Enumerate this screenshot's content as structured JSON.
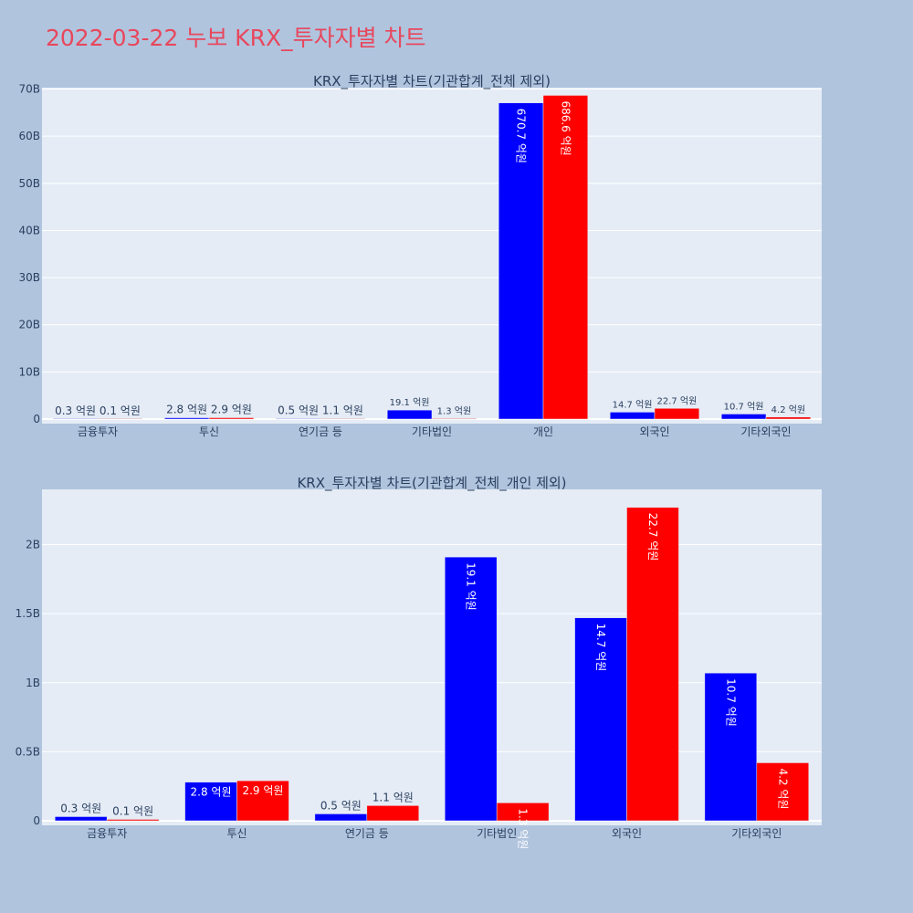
{
  "page": {
    "title": "2022-03-22 누보 KRX_투자자별 차트"
  },
  "colors": {
    "background": "#b0c4de",
    "plot_bg": "#e5ecf6",
    "buy": "#0000ff",
    "sell": "#ff0000",
    "title": "#e8475c",
    "text": "#2a3f5f"
  },
  "chart_data": [
    {
      "type": "bar",
      "title": "KRX_투자자별 차트(기관합계_전체 제외)",
      "categories": [
        "금융투자",
        "투신",
        "연기금 등",
        "기타법인",
        "개인",
        "외국인",
        "기타외국인"
      ],
      "series": [
        {
          "values": [
            30000000,
            280000000,
            50000000,
            1910000000,
            67070000000,
            1470000000,
            1070000000
          ],
          "labels": [
            "0.3 억원",
            "2.8 억원",
            "0.5 억원",
            "19.1 억원",
            "670.7 억원",
            "14.7 억원",
            "10.7 억원"
          ]
        },
        {
          "values": [
            10000000,
            290000000,
            110000000,
            130000000,
            68660000000,
            2270000000,
            420000000
          ],
          "labels": [
            "0.1 억원",
            "2.9 억원",
            "1.1 억원",
            "1.3 억원",
            "686.6 억원",
            "22.7 억원",
            "4.2 억원"
          ]
        }
      ],
      "yticks": [
        0,
        10000000000,
        20000000000,
        30000000000,
        40000000000,
        50000000000,
        60000000000,
        70000000000
      ],
      "ytick_labels": [
        "0",
        "10B",
        "20B",
        "30B",
        "40B",
        "50B",
        "60B",
        "70B"
      ],
      "ylim": [
        0,
        70300000000
      ],
      "grid": true
    },
    {
      "type": "bar",
      "title": "KRX_투자자별 차트(기관합계_전체_개인 제외)",
      "categories": [
        "금융투자",
        "투신",
        "연기금 등",
        "기타법인",
        "외국인",
        "기타외국인"
      ],
      "series": [
        {
          "values": [
            30000000,
            280000000,
            50000000,
            1910000000,
            1470000000,
            1070000000
          ],
          "labels": [
            "0.3 억원",
            "2.8 억원",
            "0.5 억원",
            "19.1 억원",
            "14.7 억원",
            "10.7 억원"
          ]
        },
        {
          "values": [
            10000000,
            290000000,
            110000000,
            130000000,
            2270000000,
            420000000
          ],
          "labels": [
            "0.1 억원",
            "2.9 억원",
            "1.1 억원",
            "1.3 억원",
            "22.7 억원",
            "4.2 억원"
          ]
        }
      ],
      "yticks": [
        0,
        500000000,
        1000000000,
        1500000000,
        2000000000
      ],
      "ytick_labels": [
        "0",
        "0.5B",
        "1B",
        "1.5B",
        "2B"
      ],
      "ylim": [
        0,
        2400000000
      ],
      "grid": true
    }
  ]
}
